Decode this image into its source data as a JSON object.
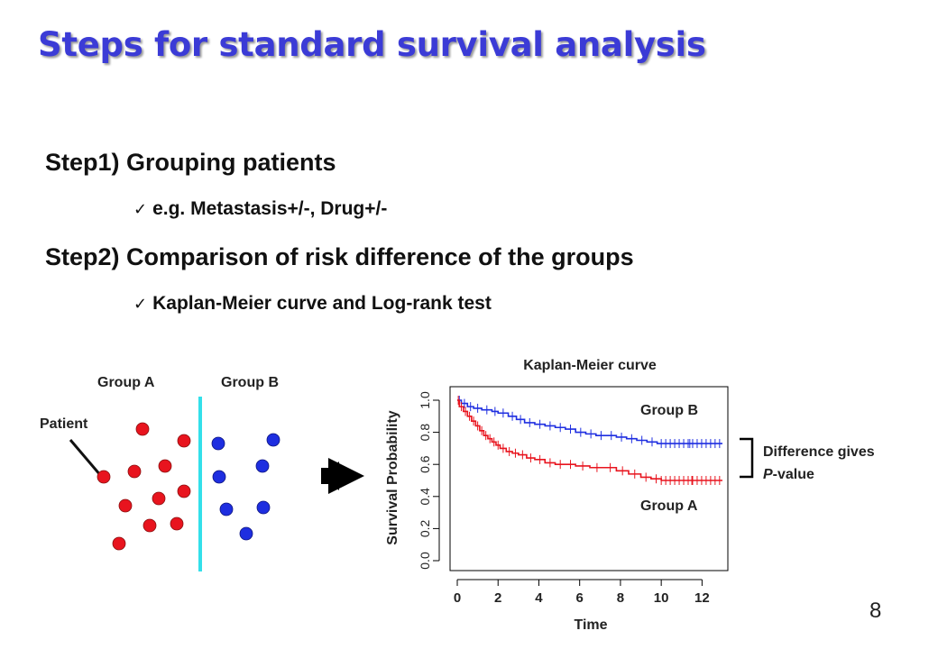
{
  "slide": {
    "title": "Steps for standard survival analysis",
    "step1": {
      "heading": "Step1) Grouping patients",
      "bullet": "e.g. Metastasis+/-, Drug+/-"
    },
    "step2": {
      "heading": "Step2) Comparison of risk difference of the groups",
      "bullet": "Kaplan-Meier curve and Log-rank test"
    },
    "page_number": "8"
  },
  "diagram": {
    "group_a_label": "Group A",
    "group_b_label": "Group B",
    "patient_label": "Patient",
    "group_a_color": "#e8141e",
    "group_b_color": "#1e2ee0",
    "divider_color": "#33e0ea"
  },
  "chart_data": {
    "type": "line",
    "title": "Kaplan-Meier curve",
    "xlabel": "Time",
    "ylabel": "Survival Probability",
    "xlim": [
      0,
      13
    ],
    "ylim": [
      0,
      1
    ],
    "x_ticks": [
      "0",
      "2",
      "4",
      "6",
      "8",
      "10",
      "12"
    ],
    "y_ticks": [
      "0.0",
      "0.2",
      "0.4",
      "0.6",
      "0.8",
      "1.0"
    ],
    "series": [
      {
        "name": "Group B",
        "color": "#1e2ee0",
        "x": [
          0,
          0.2,
          0.5,
          0.8,
          1.2,
          1.7,
          2.0,
          2.5,
          2.9,
          3.3,
          3.8,
          4.3,
          4.8,
          5.3,
          5.8,
          6.3,
          6.8,
          7.3,
          7.8,
          8.3,
          8.8,
          9.3,
          9.8,
          13
        ],
        "y": [
          1.0,
          0.98,
          0.96,
          0.95,
          0.94,
          0.93,
          0.92,
          0.9,
          0.88,
          0.86,
          0.85,
          0.84,
          0.83,
          0.82,
          0.8,
          0.79,
          0.78,
          0.78,
          0.77,
          0.76,
          0.75,
          0.74,
          0.73,
          0.73
        ]
      },
      {
        "name": "Group A",
        "color": "#e8141e",
        "x": [
          0,
          0.1,
          0.3,
          0.5,
          0.7,
          0.9,
          1.1,
          1.3,
          1.5,
          1.7,
          1.9,
          2.1,
          2.4,
          2.7,
          3.0,
          3.4,
          3.8,
          4.3,
          4.8,
          5.3,
          5.8,
          6.5,
          7.2,
          7.8,
          8.4,
          9.0,
          9.5,
          10.0,
          13
        ],
        "y": [
          1.0,
          0.96,
          0.93,
          0.9,
          0.87,
          0.84,
          0.81,
          0.78,
          0.76,
          0.74,
          0.72,
          0.7,
          0.68,
          0.67,
          0.66,
          0.64,
          0.63,
          0.61,
          0.6,
          0.6,
          0.59,
          0.58,
          0.58,
          0.56,
          0.54,
          0.52,
          0.51,
          0.5,
          0.5
        ]
      }
    ],
    "annotation": {
      "line1": "Difference gives",
      "line2_italic": "P",
      "line2_rest": "-value"
    }
  }
}
